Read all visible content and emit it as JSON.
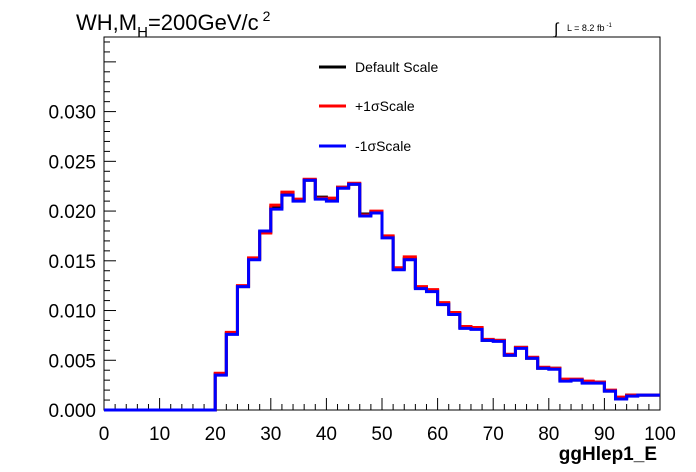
{
  "chart_data": {
    "type": "line",
    "title_parts": {
      "main": "WH,M",
      "sub": "H",
      "rest": "=200GeV/c",
      "sup": "2"
    },
    "lumi": {
      "integral": "∫",
      "text": "L = 8.2 fb",
      "sup": "-1"
    },
    "xlabel": "ggHlep1_E",
    "ylabel": "",
    "xlim": [
      0,
      100
    ],
    "ylim": [
      0,
      0.0375
    ],
    "x_ticks": [
      "0",
      "10",
      "20",
      "30",
      "40",
      "50",
      "60",
      "70",
      "80",
      "90",
      "100"
    ],
    "y_ticks": [
      "0.000",
      "0.005",
      "0.010",
      "0.015",
      "0.020",
      "0.025",
      "0.030"
    ],
    "bin_edges": [
      0,
      2,
      4,
      6,
      8,
      10,
      12,
      14,
      16,
      18,
      20,
      22,
      24,
      26,
      28,
      30,
      32,
      34,
      36,
      38,
      40,
      42,
      44,
      46,
      48,
      50,
      52,
      54,
      56,
      58,
      60,
      62,
      64,
      66,
      68,
      70,
      72,
      74,
      76,
      78,
      80,
      82,
      84,
      86,
      88,
      90,
      92,
      94,
      96,
      98,
      100
    ],
    "legend_position": "top-center",
    "series": [
      {
        "name": "Default Scale",
        "color": "#000000",
        "values": [
          0,
          0,
          0,
          0,
          0,
          0,
          0,
          0,
          0,
          0,
          0.0036,
          0.0077,
          0.0124,
          0.0152,
          0.0179,
          0.0204,
          0.0218,
          0.0211,
          0.0231,
          0.0214,
          0.0212,
          0.0224,
          0.0227,
          0.0197,
          0.0199,
          0.0174,
          0.0142,
          0.0152,
          0.0123,
          0.012,
          0.0107,
          0.0097,
          0.0083,
          0.0082,
          0.007,
          0.007,
          0.0055,
          0.0063,
          0.0052,
          0.0042,
          0.0042,
          0.003,
          0.003,
          0.0028,
          0.0028,
          0.0019,
          0.0012,
          0.0015,
          0.0015,
          0.0015
        ]
      },
      {
        "name": "+1σScale",
        "color": "#ff0000",
        "values": [
          0,
          0,
          0,
          0,
          0,
          0,
          0,
          0,
          0,
          0,
          0.0037,
          0.0078,
          0.0125,
          0.0153,
          0.0178,
          0.0206,
          0.0219,
          0.0212,
          0.0232,
          0.0213,
          0.0213,
          0.0224,
          0.0228,
          0.0196,
          0.02,
          0.0175,
          0.0143,
          0.0154,
          0.0124,
          0.0121,
          0.0108,
          0.0098,
          0.0084,
          0.0083,
          0.0071,
          0.007,
          0.0056,
          0.0063,
          0.0053,
          0.0043,
          0.0042,
          0.0031,
          0.0031,
          0.0029,
          0.0028,
          0.002,
          0.0013,
          0.0015,
          0.0015,
          0.0015
        ]
      },
      {
        "name": "-1σScale",
        "color": "#0000ff",
        "values": [
          0,
          0,
          0,
          0,
          0,
          0,
          0,
          0,
          0,
          0,
          0.0035,
          0.0076,
          0.0124,
          0.0151,
          0.018,
          0.0202,
          0.0216,
          0.021,
          0.0231,
          0.0212,
          0.021,
          0.0223,
          0.0227,
          0.0195,
          0.0198,
          0.0173,
          0.0141,
          0.0151,
          0.0122,
          0.0119,
          0.0106,
          0.0096,
          0.0082,
          0.0081,
          0.007,
          0.0069,
          0.0055,
          0.0062,
          0.0052,
          0.0042,
          0.0041,
          0.0029,
          0.003,
          0.0027,
          0.0027,
          0.0019,
          0.0011,
          0.0014,
          0.0015,
          0.0015
        ]
      }
    ]
  }
}
